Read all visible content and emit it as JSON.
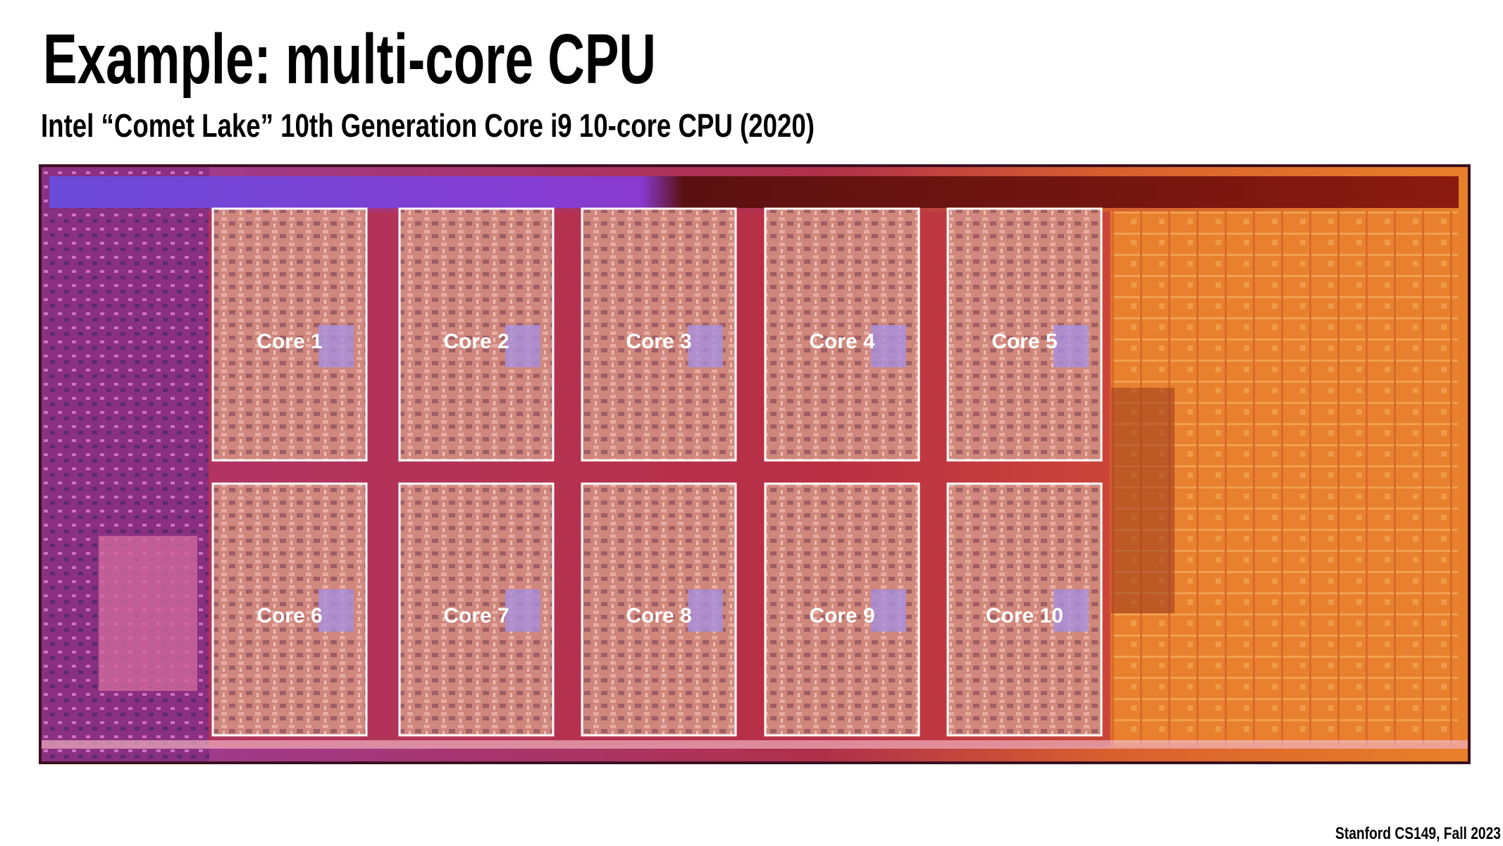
{
  "title": "Example: multi-core CPU",
  "subtitle": "Intel “Comet Lake” 10th Generation Core i9 10-core CPU (2020)",
  "cores": [
    "Core 1",
    "Core 2",
    "Core 3",
    "Core 4",
    "Core 5",
    "Core 6",
    "Core 7",
    "Core 8",
    "Core 9",
    "Core 10"
  ],
  "footer": "Stanford CS149, Fall 2023"
}
